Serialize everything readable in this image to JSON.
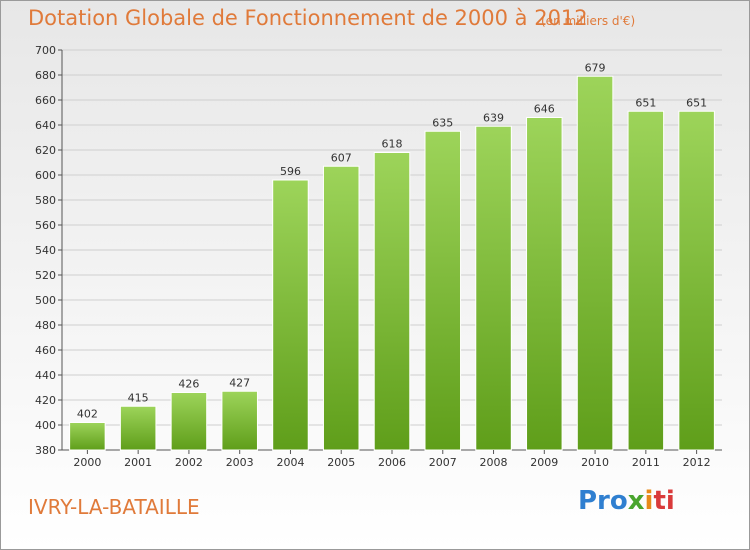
{
  "header": {
    "title": "Dotation Globale de Fonctionnement de 2000 à 2012",
    "subtitle": "(en milliers d'€)"
  },
  "footer": {
    "commune": "IVRY-LA-BATAILLE",
    "logo": {
      "parts": [
        "Pro",
        "x",
        "i",
        "ti"
      ]
    }
  },
  "colors": {
    "accent": "#e07a3a",
    "bar_top": "#9dd45a",
    "bar_bottom": "#5f9e1a",
    "axis": "#555555",
    "grid": "#cfcfcf"
  },
  "chart_data": {
    "type": "bar",
    "categories": [
      "2000",
      "2001",
      "2002",
      "2003",
      "2004",
      "2005",
      "2006",
      "2007",
      "2008",
      "2009",
      "2010",
      "2011",
      "2012"
    ],
    "values": [
      402,
      415,
      426,
      427,
      596,
      607,
      618,
      635,
      639,
      646,
      679,
      651,
      651
    ],
    "title": "Dotation Globale de Fonctionnement de 2000 à 2012",
    "subtitle": "(en milliers d'€)",
    "ylim": [
      380,
      700
    ],
    "yticks": [
      380,
      400,
      420,
      440,
      460,
      480,
      500,
      520,
      540,
      560,
      580,
      600,
      620,
      640,
      660,
      680,
      700
    ],
    "grid": "horizontal",
    "data_labels": true
  }
}
